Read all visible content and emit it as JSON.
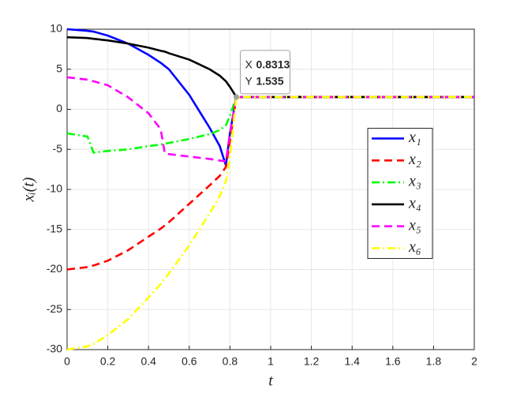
{
  "chart_data": {
    "type": "line",
    "xlabel": "t",
    "ylabel": "xᵢ(t)",
    "x": [
      0,
      0.1,
      0.13,
      0.2,
      0.3,
      0.4,
      0.46,
      0.48,
      0.5,
      0.6,
      0.7,
      0.75,
      0.78,
      0.8,
      0.8313,
      1,
      1.5,
      2
    ],
    "series": [
      {
        "name": "x₁",
        "color": "#0000ff",
        "style": "solid",
        "values": [
          10,
          9.8,
          9.7,
          9.2,
          8.2,
          6.8,
          5.8,
          5.4,
          5.0,
          1.8,
          -2.3,
          -4.6,
          -7,
          -3,
          1.535,
          1.535,
          1.535,
          1.535
        ]
      },
      {
        "name": "x₂",
        "color": "#ff0000",
        "style": "dashed",
        "values": [
          -20,
          -19.7,
          -19.5,
          -18.9,
          -17.6,
          -15.9,
          -14.9,
          -14.5,
          -14.1,
          -11.8,
          -9.5,
          -8.3,
          -7.2,
          -4,
          1.535,
          1.535,
          1.535,
          1.535
        ]
      },
      {
        "name": "x₃",
        "color": "#00ff00",
        "style": "dashdot",
        "values": [
          -3,
          -3.4,
          -5.4,
          -5.2,
          -5.0,
          -4.6,
          -4.4,
          -4.3,
          -4.2,
          -3.7,
          -3.1,
          -2.6,
          -2.0,
          -0.8,
          1.535,
          1.535,
          1.535,
          1.535
        ]
      },
      {
        "name": "x₄",
        "color": "#000000",
        "style": "solid",
        "values": [
          9,
          8.9,
          8.8,
          8.6,
          8.2,
          7.7,
          7.3,
          7.2,
          7.0,
          6.2,
          5.0,
          4.2,
          3.5,
          2.8,
          1.535,
          1.535,
          1.535,
          1.535
        ]
      },
      {
        "name": "x₅",
        "color": "#ff00ff",
        "style": "dashed",
        "values": [
          4,
          3.7,
          3.5,
          3.0,
          1.5,
          -0.5,
          -2.5,
          -5.5,
          -5.6,
          -5.9,
          -6.2,
          -6.4,
          -6.5,
          -3,
          1.535,
          1.535,
          1.535,
          1.535
        ]
      },
      {
        "name": "x₆",
        "color": "#ffff00",
        "style": "dashdot",
        "values": [
          -30,
          -29.6,
          -29.3,
          -28.2,
          -26.2,
          -23.5,
          -21.8,
          -21.1,
          -20.5,
          -17,
          -13,
          -10.8,
          -9,
          -6,
          1.535,
          1.535,
          1.535,
          1.535
        ]
      }
    ],
    "xlim": [
      0,
      2
    ],
    "xticks": [
      0,
      0.2,
      0.4,
      0.6,
      0.8,
      1,
      1.2,
      1.4,
      1.6,
      1.8,
      2
    ],
    "ylim": [
      -30,
      10
    ],
    "yticks": [
      -30,
      -25,
      -20,
      -15,
      -10,
      -5,
      0,
      5,
      10
    ],
    "grid": true,
    "legend": "east",
    "datatip": {
      "x_label": "X",
      "x": 0.8313,
      "y_label": "Y",
      "y": 1.535
    }
  }
}
